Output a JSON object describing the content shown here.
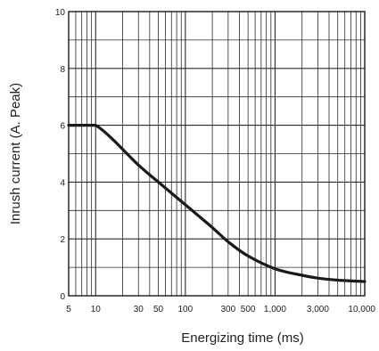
{
  "chart_data": {
    "type": "line",
    "title": "",
    "xlabel": "Energizing time (ms)",
    "ylabel": "Inrush current  (A. Peak)",
    "xscale": "log",
    "xlim": [
      5,
      10000
    ],
    "ylim": [
      0,
      10
    ],
    "grid": true,
    "x_ticks": [
      {
        "value": 5,
        "label": "5"
      },
      {
        "value": 10,
        "label": "10"
      },
      {
        "value": 30,
        "label": "30"
      },
      {
        "value": 50,
        "label": "50"
      },
      {
        "value": 100,
        "label": "100"
      },
      {
        "value": 300,
        "label": "300"
      },
      {
        "value": 500,
        "label": "500"
      },
      {
        "value": 1000,
        "label": "1,000"
      },
      {
        "value": 3000,
        "label": "3,000"
      },
      {
        "value": 10000,
        "label": "10,000"
      }
    ],
    "y_ticks": [
      {
        "value": 0,
        "label": "0"
      },
      {
        "value": 2,
        "label": "2"
      },
      {
        "value": 4,
        "label": "4"
      },
      {
        "value": 6,
        "label": "6"
      },
      {
        "value": 8,
        "label": "8"
      },
      {
        "value": 10,
        "label": "10"
      }
    ],
    "series": [
      {
        "x": [
          5,
          10,
          30,
          50,
          100,
          200,
          300,
          500,
          1000,
          2000,
          3000,
          5000,
          10000
        ],
        "y": [
          6.0,
          6.0,
          4.6,
          4.0,
          3.2,
          2.4,
          1.9,
          1.4,
          0.95,
          0.72,
          0.62,
          0.55,
          0.5
        ]
      }
    ],
    "colors": {
      "line": "#1a1a1a",
      "grid": "#2a2a2a",
      "frame": "#1a1a1a"
    }
  }
}
